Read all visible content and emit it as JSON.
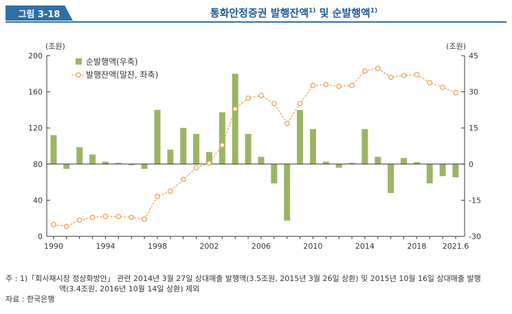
{
  "header": {
    "figure_tag": "그림 3-18",
    "title": "통화안정증권 발행잔액",
    "title_sup": "1)",
    "title_join": " 및 순발행액",
    "title_sup2": "1)"
  },
  "colors": {
    "accent": "#2f6fa8",
    "bar": "#9bb565",
    "line": "#f0a050"
  },
  "chart_data": {
    "type": "bar+line",
    "title": "통화안정증권 발행잔액 및 순발행액",
    "left_unit": "(조원)",
    "right_unit": "(조원)",
    "y_left": {
      "ylim": [
        0,
        200
      ],
      "ticks": [
        0,
        40,
        80,
        120,
        160,
        200
      ]
    },
    "y_right": {
      "ylim": [
        -30,
        45
      ],
      "ticks": [
        -30,
        -15,
        0,
        15,
        30,
        45
      ]
    },
    "x_ticks": [
      "1990",
      "1994",
      "1998",
      "2002",
      "2006",
      "2010",
      "2014",
      "2018",
      "2021.6"
    ],
    "x": [
      "1990",
      "1991",
      "1992",
      "1993",
      "1994",
      "1995",
      "1996",
      "1997",
      "1998",
      "1999",
      "2000",
      "2001",
      "2002",
      "2003",
      "2004",
      "2005",
      "2006",
      "2007",
      "2008",
      "2009",
      "2010",
      "2011",
      "2012",
      "2013",
      "2014",
      "2015",
      "2016",
      "2017",
      "2018",
      "2019",
      "2020",
      "2021.6"
    ],
    "series": [
      {
        "name": "순발행액(우축)",
        "type": "bar",
        "axis": "right",
        "values": [
          12,
          -2,
          7,
          4,
          1,
          0.5,
          -0.5,
          -2,
          22.5,
          6,
          15,
          12.5,
          5,
          21.5,
          37.5,
          12.5,
          3,
          -8,
          -23.5,
          22.5,
          14.5,
          1,
          -1.5,
          0.5,
          14.5,
          3,
          -12,
          2.5,
          0.8,
          -8,
          -5,
          -5.5
        ]
      },
      {
        "name": "발행잔액(말잔, 좌축)",
        "type": "line",
        "axis": "left",
        "values": [
          13,
          11,
          18,
          21,
          22,
          22,
          21,
          19,
          44,
          50,
          63,
          76,
          81,
          101,
          141,
          153,
          156,
          147,
          125,
          147,
          167,
          168,
          166,
          167,
          183,
          186,
          176,
          178,
          179,
          170,
          165,
          159
        ]
      }
    ],
    "legend": "top-left",
    "grid": false
  },
  "notes": {
    "line1": "주 : 1)「회사채시장 정상화방안」 관련 2014년 3월 27일 상대매출 발행액(3.5조원, 2015년 3월 26일 상환) 및 2015년 10월 16일 상대매출 발행",
    "line2": "액(3.4조원, 2016년 10월 14일 상환) 제외",
    "source": "자료 : 한국은행"
  }
}
